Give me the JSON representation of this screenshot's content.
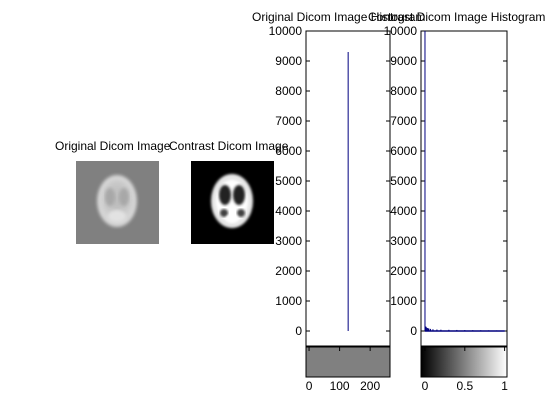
{
  "colors": {
    "background": "#ffffff",
    "plot_line": "#00007f",
    "gray_mid": "#808080"
  },
  "panels": {
    "original_image": {
      "title": "Original Dicom Image"
    },
    "contrast_image": {
      "title": "Contrast Dicom Image"
    },
    "original_hist": {
      "title": "Original Dicom Image Histogram"
    },
    "contrast_hist": {
      "title": "Contrast Dicom Image Histogram"
    }
  },
  "chart_data": [
    {
      "type": "bar",
      "title": "Original Dicom Image Histogram",
      "xlim": [
        -10,
        265
      ],
      "ylim": [
        -500,
        10000
      ],
      "yticks": [
        0,
        1000,
        2000,
        3000,
        4000,
        5000,
        6000,
        7000,
        8000,
        9000,
        10000
      ],
      "xticks": [
        0,
        100,
        200
      ],
      "colorbar": "grayscale-uniform",
      "series": [
        {
          "x": [
            128
          ],
          "values": [
            9300
          ]
        }
      ]
    },
    {
      "type": "bar",
      "title": "Contrast Dicom Image Histogram",
      "xlim": [
        -0.05,
        1.03
      ],
      "ylim": [
        -500,
        10000
      ],
      "yticks": [
        0,
        1000,
        2000,
        3000,
        4000,
        5000,
        6000,
        7000,
        8000,
        9000,
        10000
      ],
      "xticks": [
        0,
        0.5,
        1
      ],
      "colorbar": "grayscale-gradient",
      "series": [
        {
          "x": [
            0.0,
            0.01,
            0.02,
            0.03,
            0.04,
            0.05,
            0.07,
            0.1,
            0.15,
            0.2,
            0.3,
            0.4,
            0.5,
            0.6,
            0.7,
            0.8,
            0.9,
            1.0
          ],
          "values": [
            10000,
            150,
            120,
            100,
            90,
            80,
            70,
            60,
            50,
            45,
            40,
            35,
            30,
            28,
            25,
            22,
            20,
            18
          ]
        }
      ]
    }
  ]
}
